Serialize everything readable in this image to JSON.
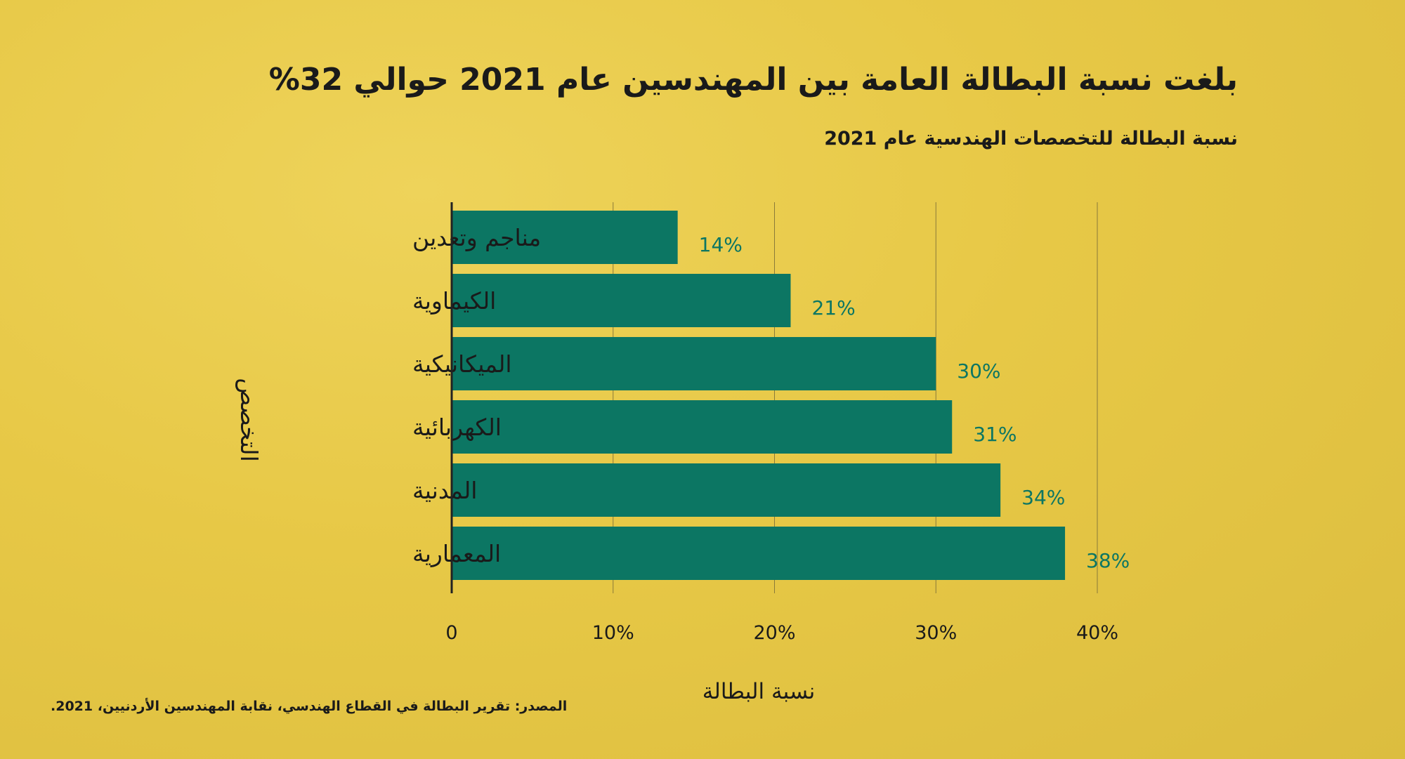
{
  "header": {
    "title": "بلغت نسبة البطالة العامة بين المهندسين عام 2021 حوالي 32%",
    "subtitle": "نسبة البطالة للتخصصات الهندسية عام 2021"
  },
  "footer": {
    "source": "المصدر: تقرير البطالة في القطاع الهندسي، نقابة المهندسين الأردنيين، 2021."
  },
  "colors": {
    "bar": "#0c7663",
    "value_label": "#0c7663",
    "text": "#1a1a1a",
    "grid": "#8a7a3a"
  },
  "chart_data": {
    "type": "bar",
    "orientation": "horizontal",
    "categories": [
      "مناجم وتعدين",
      "الكيماوية",
      "الميكانيكية",
      "الكهربائية",
      "المدنية",
      "المعمارية"
    ],
    "values": [
      14,
      21,
      30,
      31,
      34,
      38
    ],
    "value_labels": [
      "14%",
      "21%",
      "30%",
      "31%",
      "34%",
      "38%"
    ],
    "xlim": [
      0,
      40
    ],
    "xticks": [
      0,
      10,
      20,
      30,
      40
    ],
    "xtick_labels": [
      "0",
      "10%",
      "20%",
      "30%",
      "40%"
    ],
    "xlabel": "نسبة البطالة",
    "ylabel": "التخصص",
    "grid": "vertical"
  }
}
